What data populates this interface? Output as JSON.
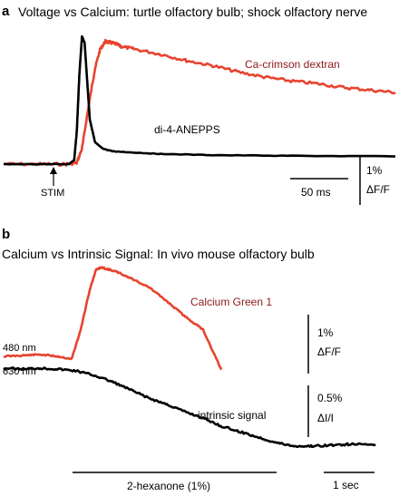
{
  "colors": {
    "red": "#e8432f",
    "dark_red": "#8b1a1a",
    "black": "#000000"
  },
  "chart_data": [
    {
      "panel": "a",
      "type": "line",
      "title": "Voltage vs Calcium: turtle olfactory bulb; shock olfactory nerve",
      "xlabel": "",
      "ylabel": "",
      "grid": false,
      "legend": "none",
      "series": [
        {
          "name": "Ca-crimson dextran",
          "color": "#e8432f",
          "label_color": "#8b1a1a",
          "x": [
            0,
            28,
            48,
            56,
            60,
            65,
            70,
            74,
            78,
            82,
            86,
            90,
            100,
            120,
            140,
            160,
            180,
            200,
            220,
            240,
            260,
            280,
            300
          ],
          "y": [
            0,
            0,
            0,
            1,
            12,
            45,
            75,
            90,
            96,
            95,
            94,
            92,
            90,
            86,
            81,
            77,
            72,
            68,
            65,
            63,
            60,
            58,
            56
          ]
        },
        {
          "name": "di-4-ANEPPS",
          "color": "#000000",
          "label_color": "#000000",
          "x": [
            0,
            28,
            50,
            54,
            56,
            58,
            60,
            62,
            64,
            66,
            70,
            76,
            84,
            100,
            120,
            160,
            220,
            300
          ],
          "y": [
            0,
            0,
            0,
            3,
            25,
            70,
            100,
            95,
            65,
            35,
            17,
            12,
            10,
            9,
            8,
            7,
            6.5,
            6
          ]
        }
      ],
      "annotations": {
        "stim_label": "STIM",
        "stim_x": 57,
        "time_scale_label": "50 ms",
        "amplitude_scale_label_top": "1%",
        "amplitude_scale_label_bottom": "ΔF/F"
      }
    },
    {
      "panel": "b",
      "type": "line",
      "title": "Calcium vs Intrinsic Signal: In vivo mouse olfactory bulb",
      "xlabel": "",
      "ylabel": "",
      "grid": false,
      "legend": "none",
      "series": [
        {
          "name": "Calcium Green 1",
          "color": "#e8432f",
          "label_color": "#8b1a1a",
          "baseline_label": "480 nm",
          "x": [
            0,
            20,
            40,
            60,
            75,
            85,
            95,
            102,
            108,
            115,
            125,
            140,
            160,
            180,
            200,
            220,
            240
          ],
          "y": [
            0,
            1,
            2,
            0,
            -3,
            30,
            75,
            98,
            100,
            98,
            95,
            88,
            78,
            62,
            45,
            30,
            -15
          ]
        },
        {
          "name": "intrinsic signal",
          "color": "#000000",
          "label_color": "#000000",
          "baseline_label": "630 nm",
          "x": [
            0,
            20,
            40,
            60,
            80,
            100,
            120,
            140,
            160,
            180,
            200,
            220,
            240,
            260,
            280,
            300,
            320,
            340,
            360,
            380,
            410
          ],
          "y": [
            0,
            -1,
            0,
            -1,
            -3,
            -8,
            -15,
            -24,
            -33,
            -40,
            -48,
            -55,
            -64,
            -70,
            -76,
            -82,
            -86,
            -86,
            -85,
            -84,
            -84
          ]
        }
      ],
      "annotations": {
        "stimulus_label": "2-hexanone (1%)",
        "time_scale_label": "1 sec",
        "calcium_scale_label_top": "1%",
        "calcium_scale_label_bottom": "ΔF/F",
        "intrinsic_scale_label_top": "0.5%",
        "intrinsic_scale_label_bottom": "ΔI/I"
      }
    }
  ]
}
